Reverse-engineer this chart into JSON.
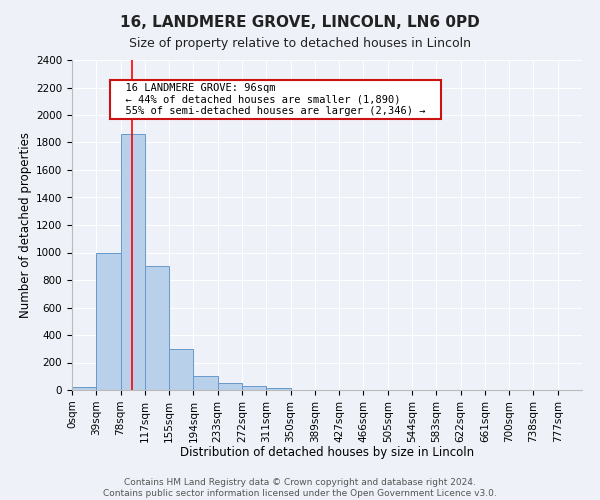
{
  "title": "16, LANDMERE GROVE, LINCOLN, LN6 0PD",
  "subtitle": "Size of property relative to detached houses in Lincoln",
  "xlabel": "Distribution of detached houses by size in Lincoln",
  "ylabel": "Number of detached properties",
  "bar_labels": [
    "0sqm",
    "39sqm",
    "78sqm",
    "117sqm",
    "155sqm",
    "194sqm",
    "233sqm",
    "272sqm",
    "311sqm",
    "350sqm",
    "389sqm",
    "427sqm",
    "466sqm",
    "505sqm",
    "544sqm",
    "583sqm",
    "622sqm",
    "661sqm",
    "700sqm",
    "738sqm",
    "777sqm"
  ],
  "bar_values": [
    20,
    1000,
    1860,
    900,
    300,
    100,
    50,
    30,
    15,
    0,
    0,
    0,
    0,
    0,
    0,
    0,
    0,
    0,
    0,
    0,
    0
  ],
  "bar_color": "#b8d0ea",
  "bar_edge_color": "#6699cc",
  "ylim": [
    0,
    2400
  ],
  "yticks": [
    0,
    200,
    400,
    600,
    800,
    1000,
    1200,
    1400,
    1600,
    1800,
    2000,
    2200,
    2400
  ],
  "annotation_title": "16 LANDMERE GROVE: 96sqm",
  "annotation_line1": "← 44% of detached houses are smaller (1,890)",
  "annotation_line2": "55% of semi-detached houses are larger (2,346) →",
  "footer_line1": "Contains HM Land Registry data © Crown copyright and database right 2024.",
  "footer_line2": "Contains public sector information licensed under the Open Government Licence v3.0.",
  "background_color": "#eef2f8",
  "grid_color": "#ffffff",
  "title_fontsize": 11,
  "subtitle_fontsize": 9,
  "axis_label_fontsize": 8.5,
  "tick_fontsize": 7.5,
  "footer_fontsize": 6.5
}
